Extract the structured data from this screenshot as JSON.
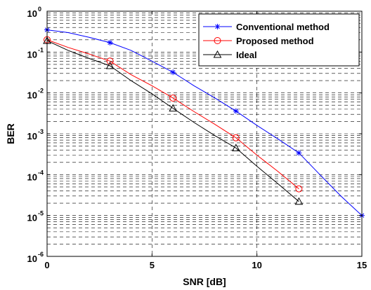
{
  "chart_data": {
    "type": "line",
    "xlabel": "SNR [dB]",
    "ylabel": "BER",
    "xlim": [
      0,
      15
    ],
    "ylim": [
      1e-06,
      1
    ],
    "yscale": "log",
    "grid": true,
    "legend_position": "top-right",
    "x_ticks": [
      0,
      5,
      10,
      15
    ],
    "x_tick_labels": [
      "0",
      "5",
      "10",
      "15"
    ],
    "y_ticks": [
      {
        "value": 1,
        "base": "10",
        "exp": "0"
      },
      {
        "value": 0.1,
        "base": "10",
        "exp": "-1"
      },
      {
        "value": 0.01,
        "base": "10",
        "exp": "-2"
      },
      {
        "value": 0.001,
        "base": "10",
        "exp": "-3"
      },
      {
        "value": 0.0001,
        "base": "10",
        "exp": "-4"
      },
      {
        "value": 1e-05,
        "base": "10",
        "exp": "-5"
      },
      {
        "value": 1e-06,
        "base": "10",
        "exp": "-6"
      }
    ],
    "series": [
      {
        "name": "Conventional method",
        "color": "#0000ff",
        "marker": "star",
        "x": [
          0,
          3,
          6,
          9,
          12,
          15
        ],
        "y": [
          0.35,
          0.17,
          0.032,
          0.0036,
          0.00034,
          1e-05
        ],
        "line_x": [
          0,
          1,
          2,
          3,
          4,
          5,
          6,
          7,
          8,
          9,
          10,
          11,
          12,
          13,
          14,
          15
        ],
        "line_y": [
          0.35,
          0.3,
          0.23,
          0.17,
          0.11,
          0.06,
          0.032,
          0.015,
          0.0075,
          0.0036,
          0.0016,
          0.00075,
          0.00034,
          0.0001,
          3e-05,
          1e-05
        ]
      },
      {
        "name": "Proposed method",
        "color": "#ff0000",
        "marker": "circle",
        "x": [
          0,
          3,
          6,
          9,
          12
        ],
        "y": [
          0.2,
          0.06,
          0.0075,
          0.0008,
          4.5e-05
        ],
        "line_x": [
          0,
          1,
          2,
          3,
          4,
          5,
          6,
          7,
          8,
          9,
          10,
          11,
          12
        ],
        "line_y": [
          0.2,
          0.13,
          0.09,
          0.06,
          0.028,
          0.015,
          0.0075,
          0.0035,
          0.0017,
          0.0008,
          0.0003,
          0.00012,
          4.5e-05
        ]
      },
      {
        "name": "Ideal",
        "color": "#000000",
        "marker": "triangle",
        "x": [
          0,
          3,
          6,
          9,
          12
        ],
        "y": [
          0.19,
          0.046,
          0.0042,
          0.00045,
          2.2e-05
        ],
        "line_x": [
          0,
          1,
          2,
          3,
          4,
          5,
          6,
          7,
          8,
          9,
          10,
          11,
          12
        ],
        "line_y": [
          0.19,
          0.11,
          0.07,
          0.046,
          0.02,
          0.0095,
          0.0042,
          0.0019,
          0.0009,
          0.00045,
          0.00016,
          6e-05,
          2.2e-05
        ]
      }
    ]
  }
}
